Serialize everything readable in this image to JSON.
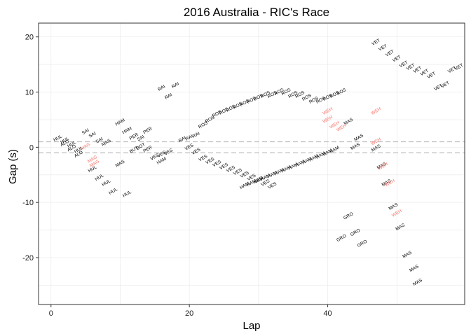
{
  "chart_data": {
    "type": "scatter",
    "title": "2016 Australia - RIC's Race",
    "xlabel": "Lap",
    "ylabel": "Gap (s)",
    "xlim": [
      -1.8,
      59.8
    ],
    "ylim": [
      -28.5,
      22.5
    ],
    "x_ticks": [
      0,
      20,
      40
    ],
    "y_ticks": [
      -20,
      -10,
      0,
      10,
      20
    ],
    "grid": true,
    "reference_lines": [
      -1,
      1
    ],
    "colors": {
      "default": "#000000",
      "highlight": "#f8766d",
      "panel_border": "#333333",
      "grid": "#ebebeb",
      "reference": "#bebebe"
    },
    "series": [
      {
        "driver": "HUL",
        "color": "#000000",
        "points": [
          [
            1,
            1.6
          ],
          [
            2,
            1.2
          ],
          [
            3,
            0.5
          ],
          [
            4,
            -0.5
          ],
          [
            6,
            -4.0
          ],
          [
            7,
            -5.5
          ],
          [
            8,
            -6.5
          ],
          [
            9,
            -8.0
          ],
          [
            11,
            -8.5
          ]
        ]
      },
      {
        "driver": "ALO",
        "color": "#000000",
        "points": [
          [
            2,
            0.7
          ],
          [
            3,
            -0.2
          ],
          [
            4,
            -1.3
          ]
        ]
      },
      {
        "driver": "SAI",
        "color": "#000000",
        "points": [
          [
            5,
            2.8
          ],
          [
            6,
            2.2
          ],
          [
            7,
            1.2
          ],
          [
            13,
            1.6
          ]
        ]
      },
      {
        "driver": "MAG",
        "color": "#f8766d",
        "points": [
          [
            5,
            0.1
          ],
          [
            6,
            -2.2
          ],
          [
            6.3,
            -3.0
          ]
        ]
      },
      {
        "driver": "MAS",
        "color": "#000000",
        "points": [
          [
            8,
            0.8
          ],
          [
            10,
            -3.0
          ],
          [
            43,
            4.6
          ],
          [
            44,
            0.1
          ],
          [
            44.5,
            1.7
          ],
          [
            47,
            -0.2
          ],
          [
            47.8,
            -3.4
          ],
          [
            48.5,
            -6.5
          ],
          [
            49.5,
            -10.8
          ],
          [
            50.5,
            -14.5
          ],
          [
            51.5,
            -19.5
          ],
          [
            52.5,
            -22.0
          ],
          [
            53,
            -24.5
          ]
        ]
      },
      {
        "driver": "HAM",
        "color": "#000000",
        "points": [
          [
            10,
            4.5
          ],
          [
            11,
            3.0
          ],
          [
            16,
            -2.5
          ],
          [
            28,
            -7.0
          ],
          [
            29,
            -6.5
          ],
          [
            30,
            -6.0
          ],
          [
            31,
            -5.5
          ],
          [
            32,
            -5.0
          ],
          [
            33,
            -4.5
          ],
          [
            34,
            -4.0
          ],
          [
            35,
            -3.5
          ],
          [
            36,
            -3.0
          ],
          [
            37,
            -2.5
          ],
          [
            38,
            -2.0
          ],
          [
            39,
            -1.5
          ],
          [
            40,
            -1.0
          ],
          [
            41,
            -0.5
          ]
        ]
      },
      {
        "driver": "PER",
        "color": "#000000",
        "points": [
          [
            12,
            1.9
          ],
          [
            14,
            3.0
          ],
          [
            14,
            -0.4
          ]
        ]
      },
      {
        "driver": "BUT",
        "color": "#000000",
        "points": [
          [
            12,
            -0.5
          ]
        ]
      },
      {
        "driver": "BOT",
        "color": "#000000",
        "points": [
          [
            13,
            0.1
          ]
        ]
      },
      {
        "driver": "VES",
        "color": "#000000",
        "points": [
          [
            15,
            -1.8
          ],
          [
            16,
            -1.3
          ],
          [
            17,
            -0.9
          ],
          [
            20,
            0.0
          ],
          [
            21,
            -0.8
          ],
          [
            22,
            -2.0
          ],
          [
            23,
            -2.5
          ],
          [
            24,
            -3.0
          ],
          [
            25,
            -3.5
          ],
          [
            26,
            -4.0
          ],
          [
            27,
            -4.5
          ],
          [
            28,
            -5.0
          ],
          [
            29,
            -5.5
          ],
          [
            30,
            -6.0
          ],
          [
            31,
            -6.5
          ],
          [
            32,
            -7.0
          ]
        ]
      },
      {
        "driver": "RAI",
        "color": "#000000",
        "points": [
          [
            16,
            10.7
          ],
          [
            17,
            9.2
          ],
          [
            18,
            11.2
          ],
          [
            19,
            1.4
          ],
          [
            20,
            1.7
          ],
          [
            21,
            2.2
          ]
        ]
      },
      {
        "driver": "ROS",
        "color": "#000000",
        "points": [
          [
            22,
            4.0
          ],
          [
            23,
            5.0
          ],
          [
            24,
            6.0
          ],
          [
            25,
            6.5
          ],
          [
            26,
            7.0
          ],
          [
            27,
            7.5
          ],
          [
            28,
            8.0
          ],
          [
            29,
            8.5
          ],
          [
            30,
            9.0
          ],
          [
            31,
            9.5
          ],
          [
            32,
            9.5
          ],
          [
            33,
            10.0
          ],
          [
            34,
            10.0
          ],
          [
            35,
            9.5
          ],
          [
            36,
            9.5
          ],
          [
            37,
            9.0
          ],
          [
            38,
            8.5
          ],
          [
            39,
            8.5
          ],
          [
            40,
            9.0
          ],
          [
            41,
            9.5
          ],
          [
            42,
            10.0
          ]
        ]
      },
      {
        "driver": "WEH",
        "color": "#f8766d",
        "points": [
          [
            40,
            6.5
          ],
          [
            40,
            5.0
          ],
          [
            41,
            4.0
          ],
          [
            42,
            3.5
          ],
          [
            47,
            6.5
          ],
          [
            47,
            1.0
          ],
          [
            48,
            -3.5
          ],
          [
            49,
            -6.5
          ],
          [
            50,
            -12.0
          ]
        ]
      },
      {
        "driver": "GRO",
        "color": "#000000",
        "points": [
          [
            42,
            -16.5
          ],
          [
            43,
            -12.5
          ],
          [
            44,
            -15.5
          ],
          [
            45,
            -17.5
          ]
        ]
      },
      {
        "driver": "VET",
        "color": "#000000",
        "points": [
          [
            47,
            19.0
          ],
          [
            48,
            18.0
          ],
          [
            49,
            17.0
          ],
          [
            50,
            16.0
          ],
          [
            51,
            15.0
          ],
          [
            52,
            14.5
          ],
          [
            53,
            14.0
          ],
          [
            54,
            13.5
          ],
          [
            55,
            13.0
          ],
          [
            56,
            10.8
          ],
          [
            57,
            11.3
          ],
          [
            58,
            14.0
          ],
          [
            59,
            14.5
          ]
        ]
      }
    ]
  }
}
